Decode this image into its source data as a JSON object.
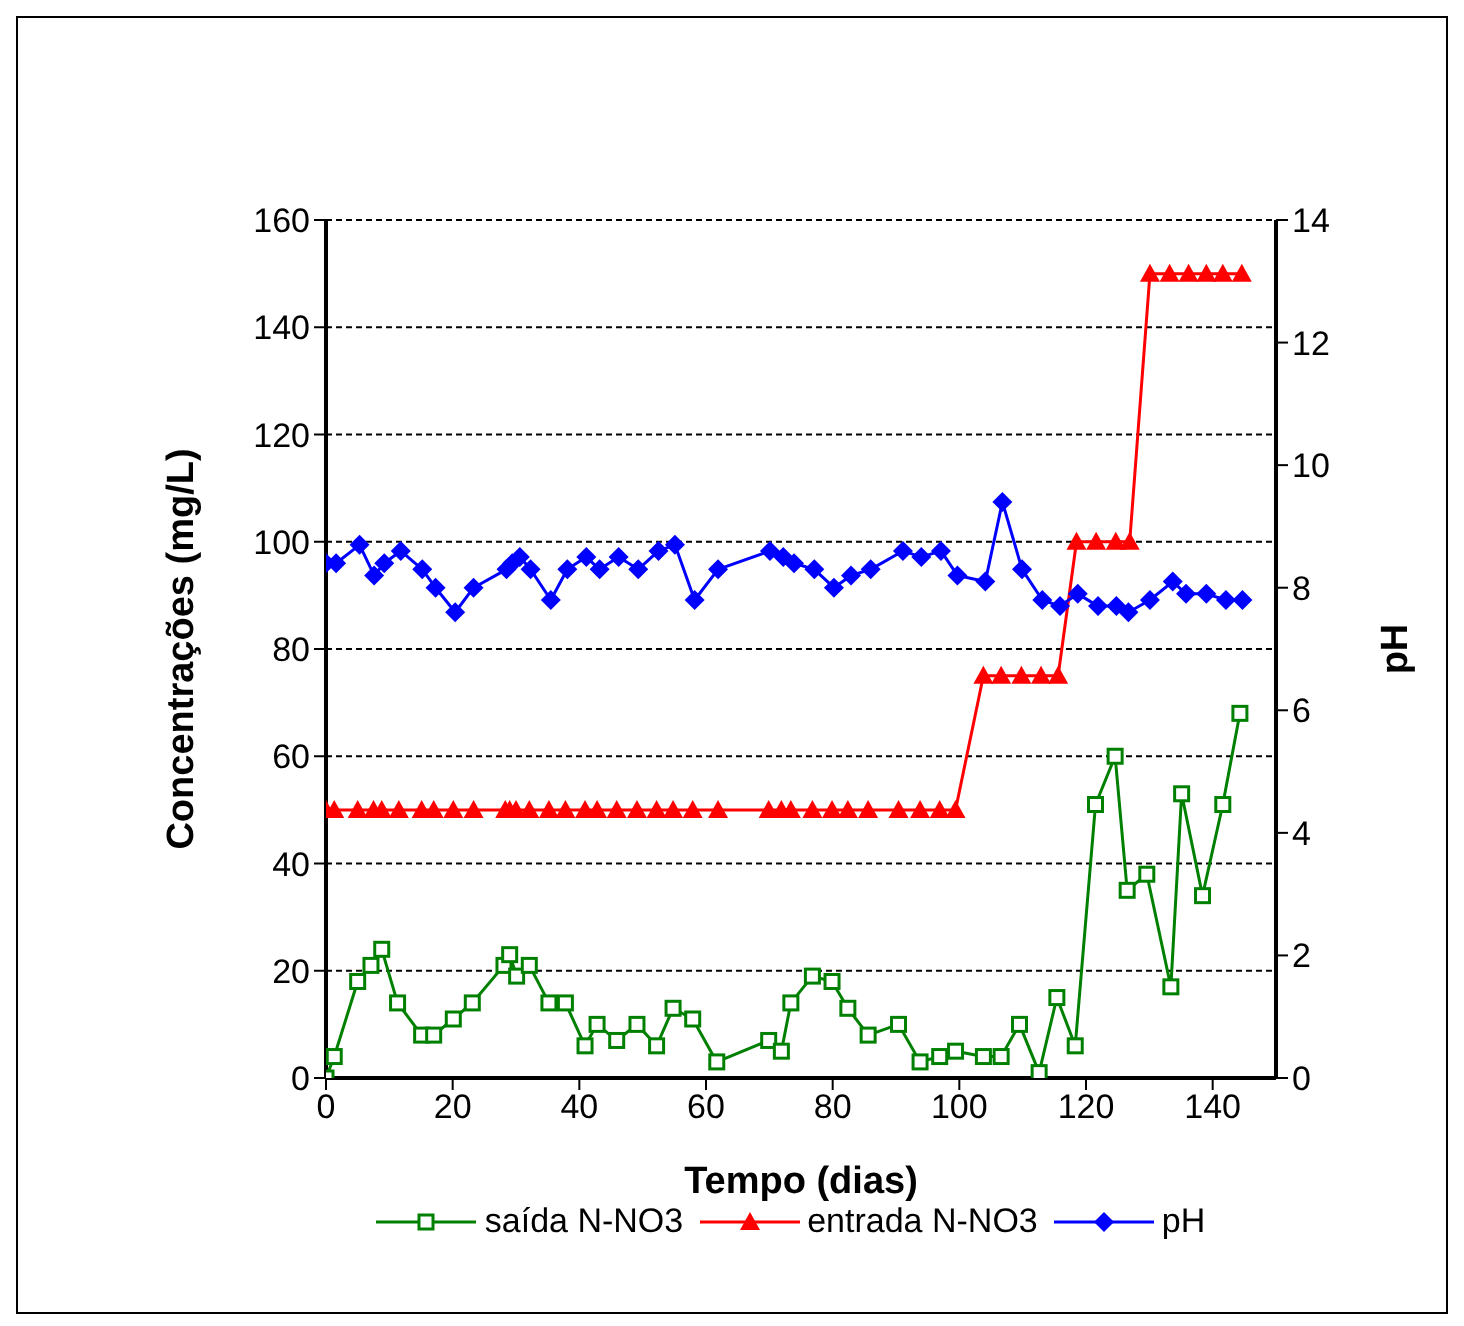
{
  "chart_data": {
    "type": "line",
    "xlabel": "Tempo (dias)",
    "ylabel": "Concentrações (mg/L)",
    "y2label": "pH",
    "xlim": [
      0,
      150
    ],
    "xticks": [
      0,
      20,
      40,
      60,
      80,
      100,
      120,
      140
    ],
    "ylim": [
      0,
      160
    ],
    "yticks": [
      0,
      20,
      40,
      60,
      80,
      100,
      120,
      140,
      160
    ],
    "y2lim": [
      0,
      14
    ],
    "y2ticks": [
      0,
      2,
      4,
      6,
      8,
      10,
      12,
      14
    ],
    "grid": "y",
    "legend": "bottom",
    "series": [
      {
        "name": "saída N-NO3",
        "color": "#008000",
        "marker": "square",
        "x": [
          0,
          1.3,
          5,
          7.1,
          8.8,
          11.3,
          15.1,
          17,
          20.1,
          23.1,
          28.1,
          29,
          30.1,
          32.1,
          35.2,
          37.8,
          40.9,
          42.8,
          45.9,
          49.1,
          52.2,
          54.8,
          57.9,
          61.7,
          69.9,
          71.9,
          73.4,
          76.8,
          79.9,
          82.4,
          85.6,
          90.4,
          93.8,
          96.9,
          99.4,
          103.8,
          106.6,
          109.5,
          112.6,
          115.4,
          118.3,
          121.5,
          124.6,
          126.5,
          129.6,
          133.4,
          135.1,
          138.4,
          141.6,
          144.3
        ],
        "values": [
          0,
          4,
          18,
          21,
          24,
          14,
          8,
          8,
          11,
          14,
          21,
          23,
          19,
          21,
          14,
          14,
          6,
          10,
          7,
          10,
          6,
          13,
          11,
          3,
          7,
          5,
          14,
          19,
          18,
          13,
          8,
          10,
          3,
          4,
          5,
          4,
          4,
          10,
          1,
          15,
          6,
          51,
          60,
          35,
          38,
          17,
          53,
          34,
          51,
          68
        ]
      },
      {
        "name": "entrada N-NO3",
        "color": "#ff0000",
        "marker": "triangle",
        "x": [
          0,
          1.3,
          5,
          7.5,
          8.8,
          11.5,
          15.1,
          17,
          20.1,
          23.3,
          28.3,
          29,
          30,
          32.1,
          35.2,
          37.8,
          40.9,
          42.8,
          45.9,
          49.1,
          52.2,
          54.8,
          57.9,
          61.9,
          69.9,
          71.9,
          73.4,
          76.8,
          79.9,
          82.4,
          85.6,
          90.4,
          93.8,
          96.9,
          99.4,
          103.8,
          106.6,
          109.8,
          112.9,
          115.6,
          118.5,
          121.6,
          124.7,
          126.9,
          130.1,
          133.2,
          136.2,
          139,
          141.6,
          144.6
        ],
        "values": [
          50,
          50,
          50,
          50,
          50,
          50,
          50,
          50,
          50,
          50,
          50,
          50,
          50,
          50,
          50,
          50,
          50,
          50,
          50,
          50,
          50,
          50,
          50,
          50,
          50,
          50,
          50,
          50,
          50,
          50,
          50,
          50,
          50,
          50,
          50,
          75,
          75,
          75,
          75,
          75,
          100,
          100,
          100,
          100,
          150,
          150,
          150,
          150,
          150,
          150
        ]
      },
      {
        "name": "pH",
        "color": "#0000ff",
        "marker": "diamond",
        "axis": "y2",
        "x": [
          0,
          1.6,
          5.3,
          7.6,
          9.2,
          11.8,
          15.2,
          17.3,
          20.4,
          23.3,
          28.5,
          29.4,
          30.6,
          32.3,
          35.5,
          38.1,
          41.1,
          43.2,
          46.2,
          49.3,
          52.5,
          55.1,
          58.2,
          61.9,
          70.1,
          72.2,
          73.9,
          77.1,
          80.2,
          82.9,
          86,
          91.1,
          94,
          97.1,
          99.7,
          104.1,
          106.8,
          109.9,
          113.1,
          115.9,
          118.7,
          121.9,
          124.8,
          126.7,
          130.1,
          133.7,
          135.8,
          139,
          142.1,
          144.7
        ],
        "values": [
          8.4,
          8.4,
          8.7,
          8.2,
          8.4,
          8.6,
          8.3,
          8.0,
          7.6,
          8.0,
          8.3,
          8.4,
          8.5,
          8.3,
          7.8,
          8.3,
          8.5,
          8.3,
          8.5,
          8.3,
          8.6,
          8.7,
          7.8,
          8.3,
          8.6,
          8.5,
          8.4,
          8.3,
          8.0,
          8.2,
          8.3,
          8.6,
          8.5,
          8.6,
          8.2,
          8.1,
          9.4,
          8.3,
          7.8,
          7.7,
          7.9,
          7.7,
          7.7,
          7.6,
          7.8,
          8.1,
          7.9,
          7.9,
          7.8,
          7.8
        ]
      }
    ]
  }
}
